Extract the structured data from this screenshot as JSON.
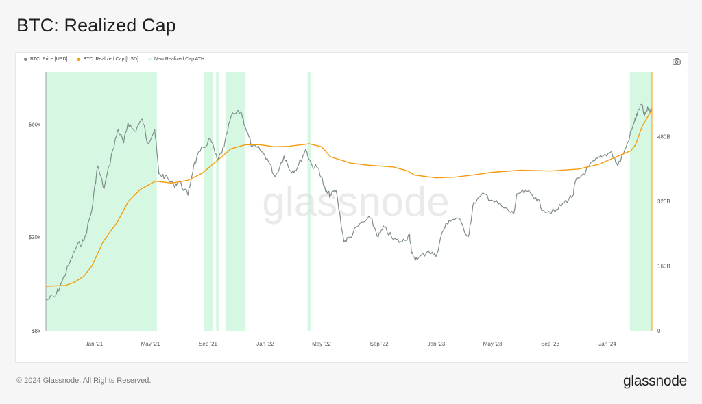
{
  "page": {
    "title": "BTC: Realized Cap",
    "copyright": "© 2024 Glassnode. All Rights Reserved.",
    "logo": "glassnode",
    "watermark": "glassnode"
  },
  "legend": [
    {
      "label": "BTC: Price [USD]",
      "color": "#888888"
    },
    {
      "label": "BTC: Realized Cap [USD]",
      "color": "#f5a300"
    },
    {
      "label": "New Realized Cap ATH",
      "color": "#d8f9e4"
    }
  ],
  "toolbar": {
    "screenshot_icon": "camera-icon"
  },
  "chart_data": {
    "type": "line",
    "colors": {
      "price": "#7f8c8c",
      "realized_cap": "#f59a0c",
      "ath_band": "#d6f8e2"
    },
    "x_ticks": [
      "Jan '21",
      "May '21",
      "Sep '21",
      "Jan '22",
      "May '22",
      "Sep '22",
      "Jan '23",
      "May '23",
      "Sep '23",
      "Jan '24"
    ],
    "x_range": [
      "2020-09-20",
      "2024-04-05"
    ],
    "left_axis": {
      "scale": "log",
      "range": [
        8000,
        100000
      ],
      "ticks": [
        "$8k",
        "$20k",
        "$60k"
      ]
    },
    "right_axis": {
      "scale": "linear",
      "range": [
        0,
        640000000000
      ],
      "ticks": [
        "0",
        "160B",
        "320B",
        "480B"
      ]
    },
    "series": [
      {
        "name": "BTC: Price [USD]",
        "axis": "left",
        "x": [
          "2020-09-20",
          "2020-10-10",
          "2020-10-25",
          "2020-11-10",
          "2020-11-25",
          "2020-12-10",
          "2020-12-27",
          "2021-01-08",
          "2021-01-22",
          "2021-02-10",
          "2021-02-21",
          "2021-03-05",
          "2021-03-14",
          "2021-03-28",
          "2021-04-14",
          "2021-04-25",
          "2021-05-10",
          "2021-05-19",
          "2021-06-01",
          "2021-06-20",
          "2021-07-01",
          "2021-07-20",
          "2021-08-01",
          "2021-08-15",
          "2021-09-06",
          "2021-09-21",
          "2021-10-05",
          "2021-10-20",
          "2021-11-10",
          "2021-11-20",
          "2021-12-04",
          "2021-12-20",
          "2022-01-05",
          "2022-01-22",
          "2022-02-10",
          "2022-02-24",
          "2022-03-10",
          "2022-03-28",
          "2022-04-11",
          "2022-04-25",
          "2022-05-10",
          "2022-05-20",
          "2022-06-01",
          "2022-06-18",
          "2022-07-01",
          "2022-07-20",
          "2022-08-14",
          "2022-08-30",
          "2022-09-12",
          "2022-10-01",
          "2022-10-20",
          "2022-11-05",
          "2022-11-09",
          "2022-11-21",
          "2022-12-15",
          "2022-12-31",
          "2023-01-14",
          "2023-01-28",
          "2023-02-16",
          "2023-03-10",
          "2023-03-22",
          "2023-04-14",
          "2023-05-01",
          "2023-05-25",
          "2023-06-15",
          "2023-06-23",
          "2023-07-14",
          "2023-08-01",
          "2023-08-17",
          "2023-09-11",
          "2023-10-01",
          "2023-10-20",
          "2023-10-24",
          "2023-11-10",
          "2023-12-05",
          "2023-12-20",
          "2024-01-10",
          "2024-01-23",
          "2024-02-10",
          "2024-02-28",
          "2024-03-05",
          "2024-03-14",
          "2024-03-20",
          "2024-03-28",
          "2024-04-04"
        ],
        "values": [
          10800,
          11200,
          13000,
          15600,
          18300,
          19200,
          26000,
          40000,
          32000,
          47000,
          57000,
          50000,
          61000,
          56000,
          63000,
          50000,
          57000,
          37000,
          36000,
          33000,
          34500,
          30000,
          40000,
          46000,
          52000,
          42000,
          48000,
          65000,
          68000,
          58000,
          48000,
          47000,
          43000,
          36000,
          44000,
          38000,
          39000,
          47000,
          40000,
          39000,
          31000,
          30000,
          31500,
          19000,
          20000,
          22500,
          24000,
          20000,
          22000,
          19500,
          19000,
          20500,
          17000,
          16000,
          17500,
          16500,
          21000,
          23500,
          24000,
          20000,
          28000,
          30300,
          28500,
          26500,
          25000,
          30500,
          31000,
          29500,
          26000,
          25500,
          28000,
          30000,
          34000,
          37000,
          42000,
          43500,
          46000,
          40000,
          48000,
          62000,
          67000,
          73000,
          65000,
          70000,
          68000
        ]
      },
      {
        "name": "BTC: Realized Cap [USD]",
        "axis": "right",
        "x": [
          "2020-09-20",
          "2020-11-01",
          "2020-11-20",
          "2020-12-10",
          "2020-12-27",
          "2021-01-20",
          "2021-02-20",
          "2021-03-15",
          "2021-04-10",
          "2021-05-12",
          "2021-06-15",
          "2021-07-20",
          "2021-08-20",
          "2021-09-20",
          "2021-10-20",
          "2021-11-20",
          "2021-12-20",
          "2022-01-20",
          "2022-02-20",
          "2022-03-20",
          "2022-04-05",
          "2022-05-01",
          "2022-05-20",
          "2022-07-01",
          "2022-08-01",
          "2022-10-01",
          "2022-11-01",
          "2022-11-15",
          "2023-01-01",
          "2023-02-10",
          "2023-03-20",
          "2023-05-01",
          "2023-07-01",
          "2023-09-01",
          "2023-11-01",
          "2023-12-15",
          "2024-01-20",
          "2024-02-20",
          "2024-03-01",
          "2024-03-15",
          "2024-04-04"
        ],
        "values": [
          110000000000.0,
          112000000000.0,
          120000000000.0,
          135000000000.0,
          160000000000.0,
          220000000000.0,
          270000000000.0,
          320000000000.0,
          350000000000.0,
          370000000000.0,
          365000000000.0,
          372000000000.0,
          390000000000.0,
          420000000000.0,
          450000000000.0,
          460000000000.0,
          460000000000.0,
          455000000000.0,
          456000000000.0,
          460000000000.0,
          462000000000.0,
          455000000000.0,
          430000000000.0,
          415000000000.0,
          410000000000.0,
          405000000000.0,
          395000000000.0,
          385000000000.0,
          378000000000.0,
          380000000000.0,
          385000000000.0,
          392000000000.0,
          397000000000.0,
          395000000000.0,
          400000000000.0,
          412000000000.0,
          430000000000.0,
          445000000000.0,
          460000000000.0,
          505000000000.0,
          545000000000.0
        ]
      }
    ],
    "ath_periods": [
      [
        "2020-09-20",
        "2021-05-15"
      ],
      [
        "2021-08-23",
        "2021-09-12"
      ],
      [
        "2021-09-18",
        "2021-09-25"
      ],
      [
        "2021-10-08",
        "2021-11-20"
      ],
      [
        "2022-04-01",
        "2022-04-08"
      ],
      [
        "2024-02-18",
        "2024-04-05"
      ]
    ]
  }
}
